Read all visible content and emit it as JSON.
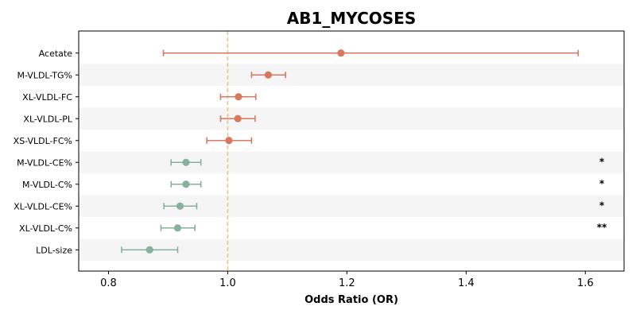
{
  "chart_data": {
    "type": "scatter",
    "subtype": "forest-plot",
    "title": "AB1_MYCOSES",
    "xlabel": "Odds Ratio (OR)",
    "ylabel": "",
    "xlim": [
      0.75,
      1.665
    ],
    "xticks": [
      0.8,
      1.0,
      1.2,
      1.4,
      1.6
    ],
    "xtick_labels": [
      "0.8",
      "1.0",
      "1.2",
      "1.4",
      "1.6"
    ],
    "reference_line": 1.0,
    "reference_color": "#e9c48a",
    "positive_color": "#d9785f",
    "negative_color": "#86b29c",
    "stripe_color": "#f5f5f5",
    "rows": [
      {
        "label": "Acetate",
        "or": 1.19,
        "lower": 0.892,
        "upper": 1.588,
        "sig": ""
      },
      {
        "label": "M-VLDL-TG%",
        "or": 1.068,
        "lower": 1.04,
        "upper": 1.097,
        "sig": ""
      },
      {
        "label": "XL-VLDL-FC",
        "or": 1.018,
        "lower": 0.988,
        "upper": 1.047,
        "sig": ""
      },
      {
        "label": "XL-VLDL-PL",
        "or": 1.017,
        "lower": 0.988,
        "upper": 1.046,
        "sig": ""
      },
      {
        "label": "XS-VLDL-FC%",
        "or": 1.002,
        "lower": 0.965,
        "upper": 1.04,
        "sig": ""
      },
      {
        "label": "M-VLDL-CE%",
        "or": 0.93,
        "lower": 0.905,
        "upper": 0.955,
        "sig": "*"
      },
      {
        "label": "M-VLDL-C%",
        "or": 0.93,
        "lower": 0.905,
        "upper": 0.955,
        "sig": "*"
      },
      {
        "label": "XL-VLDL-CE%",
        "or": 0.92,
        "lower": 0.893,
        "upper": 0.948,
        "sig": "*"
      },
      {
        "label": "XL-VLDL-C%",
        "or": 0.916,
        "lower": 0.888,
        "upper": 0.945,
        "sig": "**"
      },
      {
        "label": "LDL-size",
        "or": 0.869,
        "lower": 0.822,
        "upper": 0.916,
        "sig": ""
      }
    ]
  }
}
